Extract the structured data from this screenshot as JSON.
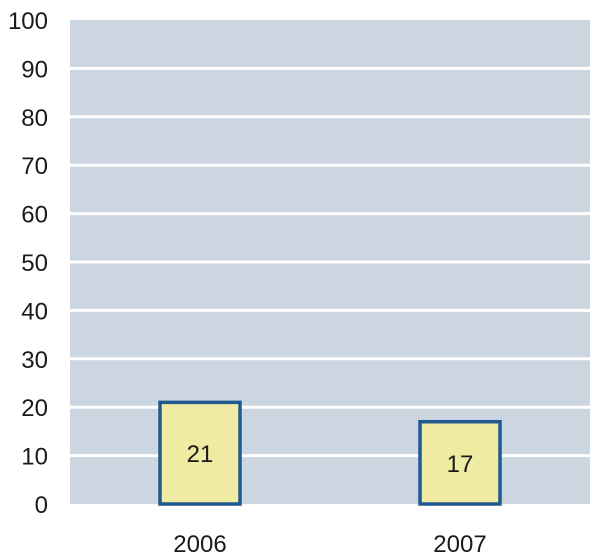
{
  "chart_data": {
    "type": "bar",
    "title": "",
    "xlabel": "",
    "ylabel": "",
    "categories": [
      "2006",
      "2007"
    ],
    "values": [
      21,
      17
    ],
    "ylim": [
      0,
      100
    ],
    "yticks": [
      0,
      10,
      20,
      30,
      40,
      50,
      60,
      70,
      80,
      90,
      100
    ],
    "grid": true,
    "legend": "none",
    "colors": {
      "plot_background": "#ccd6e1",
      "gridline": "#ffffff",
      "bar_fill": "#f0eba3",
      "bar_stroke": "#20598f",
      "text": "#1a1a1a"
    }
  }
}
